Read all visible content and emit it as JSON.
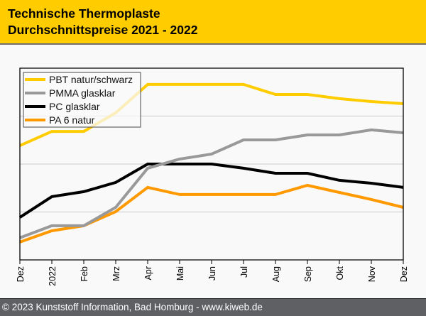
{
  "header": {
    "title_line1": "Technische Thermoplaste",
    "title_line2": "Durchschnittspreise 2021 - 2022"
  },
  "footer": {
    "text": "© 2023 Kunststoff Information, Bad Homburg - www.kiweb.de"
  },
  "chart_data": {
    "type": "line",
    "title": "Technische Thermoplaste Durchschnittspreise 2021 - 2022",
    "xlabel": "",
    "ylabel": "",
    "y_axis_labels_shown": false,
    "y_unit": "relative index (0 = axis bottom, 100 = axis top)",
    "ylim": [
      0,
      100
    ],
    "y_gridlines": [
      25,
      50,
      75
    ],
    "grid": true,
    "legend_position": "top-left",
    "categories": [
      "Dez",
      "2022",
      "Feb",
      "Mrz",
      "Apr",
      "Mai",
      "Jun",
      "Jul",
      "Aug",
      "Sep",
      "Okt",
      "Nov",
      "Dez"
    ],
    "series": [
      {
        "name": "PBT natur/schwarz",
        "color": "#ffcc00",
        "values": [
          59.6,
          67.0,
          67.0,
          76.7,
          91.5,
          91.5,
          91.5,
          91.5,
          86.3,
          86.3,
          84.1,
          82.6,
          81.5
        ]
      },
      {
        "name": "PMMA glasklar",
        "color": "#999999",
        "values": [
          11.5,
          17.8,
          17.8,
          27.4,
          47.8,
          52.6,
          55.2,
          62.6,
          62.6,
          65.2,
          65.2,
          67.8,
          66.3
        ]
      },
      {
        "name": "PC glasklar",
        "color": "#000000",
        "values": [
          22.2,
          33.0,
          35.6,
          40.4,
          50.0,
          50.0,
          50.0,
          47.8,
          45.2,
          45.2,
          41.5,
          40.0,
          37.8
        ]
      },
      {
        "name": "PA 6 natur",
        "color": "#ff9900",
        "values": [
          9.3,
          15.2,
          17.8,
          25.2,
          37.8,
          34.1,
          34.1,
          34.1,
          34.1,
          38.9,
          35.2,
          31.5,
          27.4
        ]
      }
    ]
  }
}
